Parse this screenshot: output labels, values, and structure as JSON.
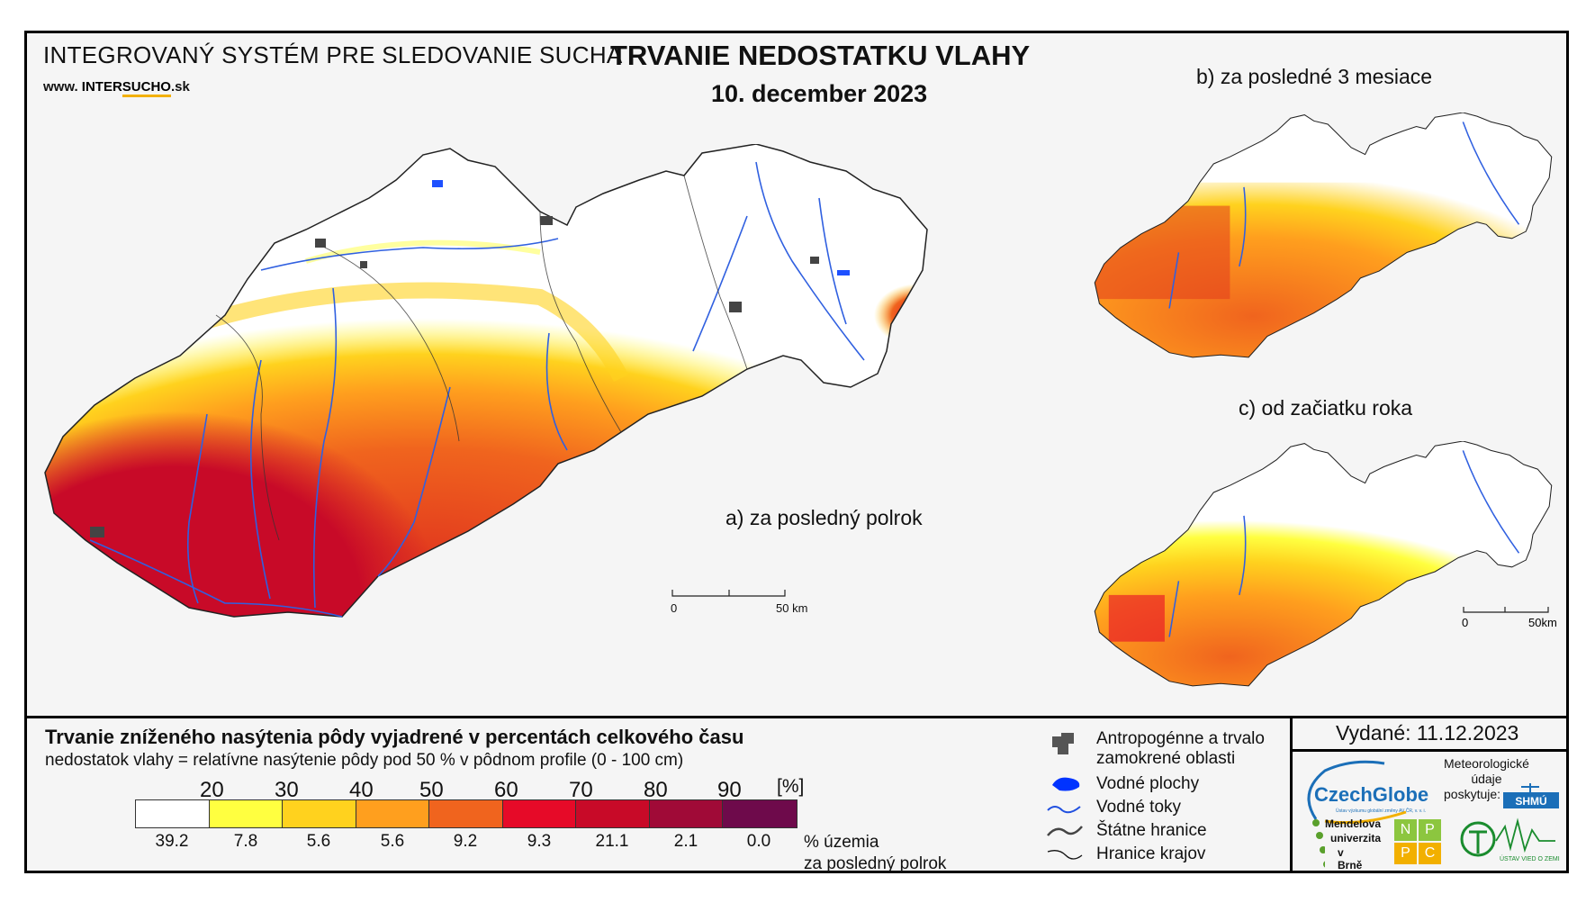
{
  "header": {
    "system_name": "INTEGROVANÝ SYSTÉM PRE SLEDOVANIE SUCHA",
    "website_prefix": "www.",
    "website_mid": "INTER",
    "website_accent": "SUCHO",
    "website_suffix": ".sk",
    "title": "TRVANIE NEDOSTATKU VLAHY",
    "date": "10. december 2023"
  },
  "maps": {
    "main_label": "a) za posledný polrok",
    "b_label": "b) za posledné 3 mesiace",
    "c_label": "c) od začiatku roka",
    "scale_main": {
      "zero": "0",
      "end": "50 km"
    },
    "scale_small": {
      "zero": "0",
      "end": "50km"
    }
  },
  "legend": {
    "title": "Trvanie zníženého nasýtenia pôdy vyjadrené v percentách celkového času",
    "subtitle": "nedostatok vlahy = relatívne nasýtenie pôdy pod 50 % v pôdnom profile (0 - 100 cm)",
    "ticks": [
      "20",
      "30",
      "40",
      "50",
      "60",
      "70",
      "80",
      "90"
    ],
    "unit": "[%]",
    "colors": [
      "#ffffff",
      "#ffff40",
      "#ffd21e",
      "#ff9f1e",
      "#f0641e",
      "#e60a28",
      "#c80a28",
      "#a00a37",
      "#6e0a4b"
    ],
    "percentages": [
      "39.2",
      "7.8",
      "5.6",
      "5.6",
      "9.2",
      "9.3",
      "21.1",
      "2.1",
      "0.0"
    ],
    "area_label_1": "% územia",
    "area_label_2": "za posledný polrok"
  },
  "map_legend": {
    "anthropogenic_1": "Antropogénne a trvalo",
    "anthropogenic_2": "zamokrené oblasti",
    "water_bodies": "Vodné plochy",
    "rivers": "Vodné toky",
    "state_border": "Štátne hranice",
    "region_border": "Hranice krajov"
  },
  "issue": {
    "issued": "Vydané: 11.12.2023",
    "met_data": "Meteorologické údaje poskytuje:",
    "met_line1": "Meteorologické",
    "met_line2": "údaje",
    "met_line3": "poskytuje:"
  },
  "logos": {
    "czechglobe": "CzechGlobe",
    "czechglobe_sub": "Ústav výzkumu globální změny AV ČR, v. v. i.",
    "shmu": "SHMÚ",
    "mendel_1": "Mendelova",
    "mendel_2": "univerzita",
    "mendel_3": "v Brně",
    "nppc": [
      "N",
      "P",
      "P",
      "C"
    ],
    "uvz": "ÚSTAV VIED O ZEMI"
  }
}
